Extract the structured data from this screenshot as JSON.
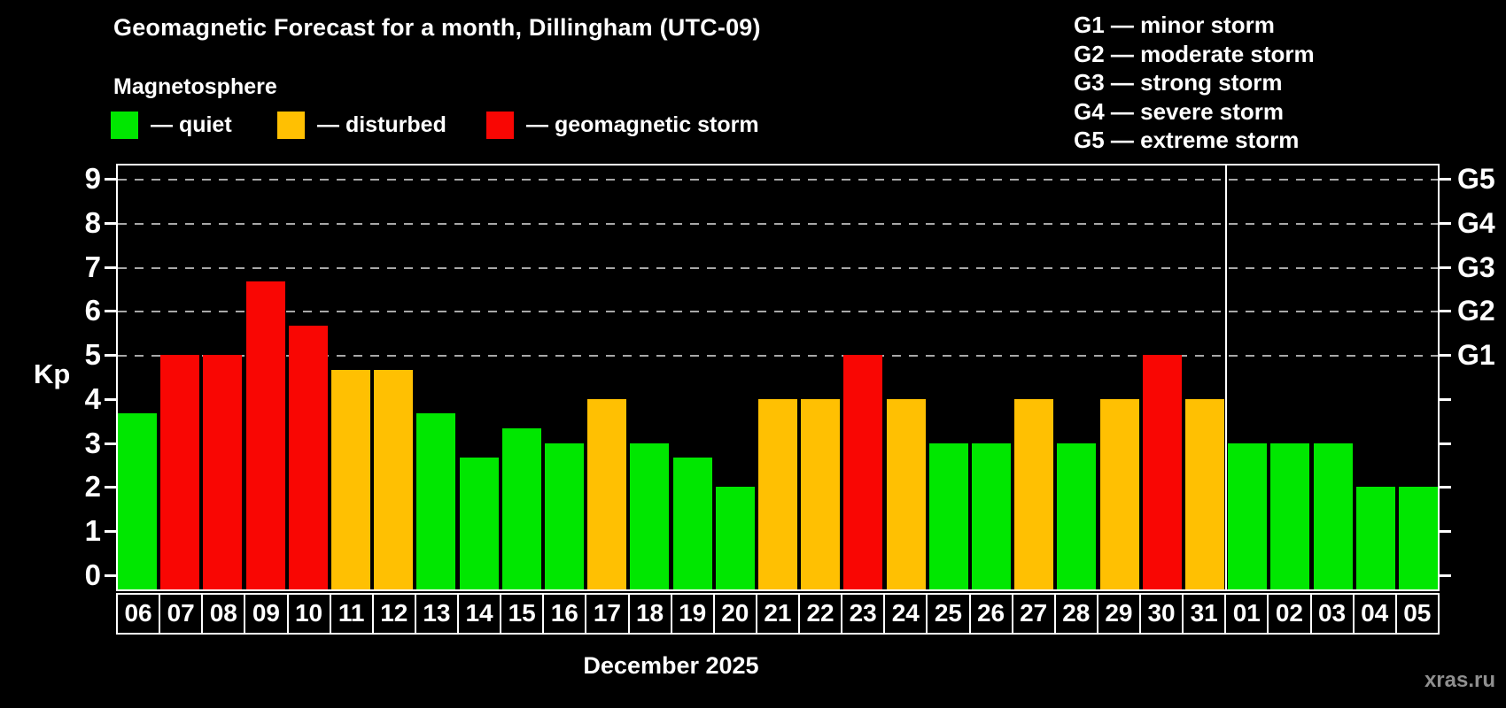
{
  "title": "Geomagnetic Forecast for a month, Dillingham (UTC-09)",
  "subtitle": "Magnetosphere",
  "legend": {
    "quiet": {
      "label": "— quiet",
      "color": "#00e700"
    },
    "disturbed": {
      "label": "— disturbed",
      "color": "#ffc002"
    },
    "storm": {
      "label": "— geomagnetic storm",
      "color": "#f90603"
    }
  },
  "g_scale": [
    {
      "code": "G1",
      "label": "G1 — minor storm",
      "kp": 5
    },
    {
      "code": "G2",
      "label": "G2 — moderate storm",
      "kp": 6
    },
    {
      "code": "G3",
      "label": "G3 — strong storm",
      "kp": 7
    },
    {
      "code": "G4",
      "label": "G4 — severe storm",
      "kp": 8
    },
    {
      "code": "G5",
      "label": "G5 — extreme storm",
      "kp": 9
    }
  ],
  "axis": {
    "ylabel": "Kp",
    "yticks": [
      0,
      1,
      2,
      3,
      4,
      5,
      6,
      7,
      8,
      9
    ],
    "month_label": "December 2025"
  },
  "watermark": "xras.ru",
  "chart_data": {
    "type": "bar",
    "title": "Geomagnetic Forecast for a month, Dillingham (UTC-09)",
    "xlabel": "December 2025",
    "ylabel": "Kp",
    "ylim": [
      0,
      9
    ],
    "grid": "dashed horizontal lines at Kp 5-9 (G1-G5) only",
    "legend_position": "top",
    "categories": [
      "06",
      "07",
      "08",
      "09",
      "10",
      "11",
      "12",
      "13",
      "14",
      "15",
      "16",
      "17",
      "18",
      "19",
      "20",
      "21",
      "22",
      "23",
      "24",
      "25",
      "26",
      "27",
      "28",
      "29",
      "30",
      "31",
      "01",
      "02",
      "03",
      "04",
      "05"
    ],
    "values": [
      3.67,
      5,
      5,
      6.67,
      5.67,
      4.67,
      4.67,
      3.67,
      2.67,
      3.33,
      3,
      4,
      3,
      2.67,
      2,
      4,
      4,
      5,
      4,
      3,
      3,
      4,
      3,
      4,
      5,
      4,
      3,
      3,
      3,
      2,
      2
    ],
    "statuses": [
      "quiet",
      "storm",
      "storm",
      "storm",
      "storm",
      "disturbed",
      "disturbed",
      "quiet",
      "quiet",
      "quiet",
      "quiet",
      "disturbed",
      "quiet",
      "quiet",
      "quiet",
      "disturbed",
      "disturbed",
      "storm",
      "disturbed",
      "quiet",
      "quiet",
      "disturbed",
      "quiet",
      "disturbed",
      "storm",
      "disturbed",
      "quiet",
      "quiet",
      "quiet",
      "quiet",
      "quiet"
    ],
    "divider_after_index": 25
  }
}
